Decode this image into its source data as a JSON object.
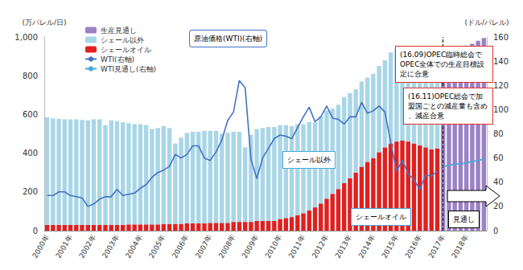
{
  "chart_data": {
    "type": "bar",
    "y_label": "(万バレル/日)",
    "y2_label": "(ドル/バレル)",
    "categories": [
      "2000年",
      null,
      null,
      null,
      "2001年",
      null,
      null,
      null,
      "2002年",
      null,
      null,
      null,
      "2003年",
      null,
      null,
      null,
      "2004年",
      null,
      null,
      null,
      "2005年",
      null,
      null,
      null,
      "2006年",
      null,
      null,
      null,
      "2007年",
      null,
      null,
      null,
      "2008年",
      null,
      null,
      null,
      "2009年",
      null,
      null,
      null,
      "2010年",
      null,
      null,
      null,
      "2011年",
      null,
      null,
      null,
      "2012年",
      null,
      null,
      null,
      "2013年",
      null,
      null,
      null,
      "2014年",
      null,
      null,
      null,
      "2015年",
      null,
      null,
      null,
      "2016年",
      null,
      null,
      null,
      "2017年",
      null,
      null,
      null,
      "2018年",
      null,
      null,
      null
    ],
    "series": [
      {
        "name": "生産見通し",
        "type": "bar",
        "color": "#9b82c4",
        "values": [
          null,
          null,
          null,
          null,
          null,
          null,
          null,
          null,
          null,
          null,
          null,
          null,
          null,
          null,
          null,
          null,
          null,
          null,
          null,
          null,
          null,
          null,
          null,
          null,
          null,
          null,
          null,
          null,
          null,
          null,
          null,
          null,
          null,
          null,
          null,
          null,
          null,
          null,
          null,
          null,
          null,
          null,
          null,
          null,
          null,
          null,
          null,
          null,
          null,
          null,
          null,
          null,
          null,
          null,
          null,
          null,
          null,
          null,
          null,
          null,
          null,
          null,
          null,
          null,
          null,
          null,
          null,
          null,
          900,
          915,
          930,
          945,
          955,
          965,
          980,
          995
        ]
      },
      {
        "name": "シェール以外",
        "type": "bar",
        "color": "#a9d6e6",
        "values": [
          555,
          550,
          548,
          545,
          545,
          545,
          542,
          540,
          545,
          545,
          515,
          540,
          535,
          530,
          523,
          518,
          518,
          513,
          493,
          498,
          505,
          495,
          415,
          445,
          467,
          472,
          472,
          477,
          475,
          475,
          460,
          465,
          465,
          465,
          385,
          450,
          475,
          480,
          485,
          485,
          485,
          480,
          470,
          470,
          460,
          455,
          440,
          450,
          455,
          440,
          435,
          445,
          440,
          430,
          440,
          435,
          435,
          445,
          450,
          470,
          480,
          490,
          480,
          480,
          470,
          450,
          440,
          455,
          null,
          null,
          null,
          null,
          null,
          null,
          null,
          null
        ]
      },
      {
        "name": "シェールオイル",
        "type": "bar",
        "color": "#e02020",
        "values": [
          30,
          30,
          30,
          30,
          30,
          30,
          30,
          30,
          30,
          30,
          30,
          30,
          30,
          30,
          32,
          32,
          32,
          32,
          32,
          32,
          35,
          35,
          35,
          35,
          38,
          38,
          38,
          38,
          40,
          40,
          40,
          40,
          45,
          45,
          45,
          45,
          50,
          50,
          50,
          50,
          60,
          65,
          70,
          80,
          90,
          105,
          120,
          140,
          165,
          190,
          215,
          245,
          270,
          300,
          330,
          355,
          375,
          405,
          430,
          450,
          460,
          465,
          460,
          450,
          440,
          430,
          420,
          425,
          null,
          null,
          null,
          null,
          null,
          null,
          null,
          null
        ]
      },
      {
        "name": "WTI(右軸)",
        "type": "line",
        "axis": "y2",
        "color": "#4472c4",
        "line_style": "solid",
        "values": [
          29,
          29,
          32,
          32,
          29,
          28,
          27,
          20,
          22,
          26,
          28,
          28,
          34,
          29,
          30,
          31,
          35,
          38,
          44,
          48,
          50,
          53,
          63,
          60,
          63,
          70,
          70,
          60,
          58,
          65,
          75,
          91,
          98,
          124,
          118,
          59,
          43,
          60,
          68,
          76,
          79,
          78,
          76,
          85,
          94,
          102,
          90,
          94,
          103,
          93,
          92,
          88,
          94,
          94,
          106,
          97,
          99,
          103,
          98,
          73,
          49,
          58,
          47,
          42,
          34,
          46,
          45,
          49,
          null,
          null,
          null,
          null,
          null,
          null,
          null,
          null
        ]
      },
      {
        "name": "WTI見通し(右軸)",
        "type": "line",
        "axis": "y2",
        "color": "#4aa8d8",
        "line_style": "solid",
        "values": [
          null,
          null,
          null,
          null,
          null,
          null,
          null,
          null,
          null,
          null,
          null,
          null,
          null,
          null,
          null,
          null,
          null,
          null,
          null,
          null,
          null,
          null,
          null,
          null,
          null,
          null,
          null,
          null,
          null,
          null,
          null,
          null,
          null,
          null,
          null,
          null,
          null,
          null,
          null,
          null,
          null,
          null,
          null,
          null,
          null,
          null,
          null,
          null,
          null,
          null,
          null,
          null,
          null,
          null,
          null,
          null,
          null,
          null,
          null,
          null,
          null,
          null,
          null,
          null,
          null,
          null,
          null,
          null,
          53,
          54,
          55,
          55,
          56,
          57,
          58,
          59
        ]
      }
    ],
    "ylim": [
      0,
      1000
    ],
    "yticks": [
      0,
      200,
      400,
      600,
      800,
      {
        "value": 1000,
        "label": "1,000"
      }
    ],
    "y2lim": [
      0,
      160
    ],
    "y2ticks": [
      0,
      20,
      40,
      60,
      80,
      100,
      120,
      140,
      160
    ],
    "stacked": true,
    "grid": false,
    "legend": "top-left",
    "annotations": [
      "原油価格(WTI)(右軸)",
      "シェール以外",
      "シェールオイル",
      "見通し",
      "(16.09)OPEC臨時総会でOPEC全体での生産目標設定に合意",
      "(16.11)OPEC総会で加盟国ごとの減産量も含め、減産合意"
    ]
  }
}
